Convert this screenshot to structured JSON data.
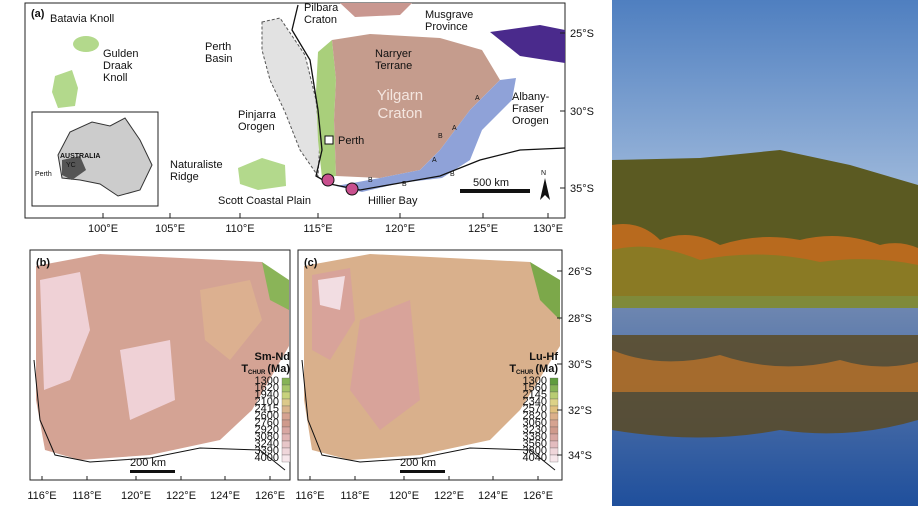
{
  "panel_a": {
    "label": "(a)",
    "places": [
      [
        "Batavia Knoll"
      ],
      [
        "Gulden",
        "Draak",
        "Knoll"
      ],
      [
        "Perth",
        "Basin"
      ],
      [
        "Pilbara",
        "Craton"
      ],
      [
        "Narryer",
        "Terrane"
      ],
      [
        "Musgrave",
        "Province"
      ],
      [
        "Yilgarn",
        "Craton"
      ],
      [
        "Albany-",
        "Fraser",
        "Orogen"
      ],
      [
        "Pinjarra",
        "Orogen"
      ],
      [
        "Perth"
      ],
      [
        "Naturaliste",
        "Ridge"
      ],
      [
        "Scott Coastal Plain"
      ],
      [
        "Hillier Bay"
      ]
    ],
    "domain_letters": [
      "A",
      "A",
      "A",
      "B",
      "B",
      "B",
      "B"
    ],
    "inset": {
      "country": "AUSTRALIA",
      "craton": "YC",
      "city": "Perth"
    },
    "scale": "500 km",
    "north": "N",
    "lat_labels": [
      "25°S",
      "30°S",
      "35°S"
    ],
    "lon_labels": [
      "100°E",
      "105°E",
      "110°E",
      "115°E",
      "120°E",
      "125°E",
      "130°E"
    ]
  },
  "panel_b": {
    "label": "(b)",
    "legend_title": "Sm-Nd",
    "legend_unit": "T",
    "legend_sub": "CHUR",
    "legend_suffix": "(Ma)",
    "legend_values": [
      "1300",
      "1620",
      "1940",
      "2100",
      "2415",
      "2600",
      "2760",
      "2920",
      "3080",
      "3240",
      "3390",
      "4000"
    ],
    "scale": "200 km",
    "lon_labels": [
      "116°E",
      "118°E",
      "120°E",
      "122°E",
      "124°E",
      "126°E"
    ]
  },
  "panel_c": {
    "label": "(c)",
    "legend_title": "Lu-Hf",
    "legend_unit": "T",
    "legend_sub": "CHUR",
    "legend_suffix": "(Ma)",
    "legend_values": [
      "1300",
      "1560",
      "2145",
      "2340",
      "2570",
      "2820",
      "3060",
      "3230",
      "3380",
      "3560",
      "3800",
      "4040"
    ],
    "scale": "200 km",
    "lon_labels": [
      "116°E",
      "118°E",
      "120°E",
      "122°E",
      "124°E",
      "126°E"
    ],
    "lat_labels": [
      "26°S",
      "28°S",
      "30°S",
      "32°S",
      "34°S"
    ]
  }
}
